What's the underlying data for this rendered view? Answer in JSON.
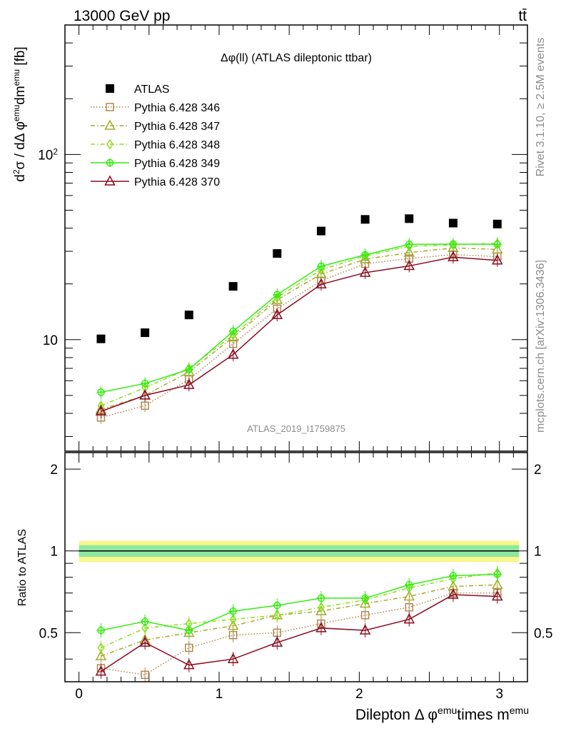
{
  "header": {
    "energy_label": "13000 GeV pp",
    "process_label": "tt̄"
  },
  "side_text": {
    "rivet": "Rivet 3.1.10, ≥ 2.5M events",
    "source": "mcplots.cern.ch [arXiv:1306.3436]"
  },
  "chart_data": [
    {
      "type": "scatter",
      "panel": "main",
      "title": "Δφ(ll) (ATLAS dileptonic ttbar)",
      "watermark": "ATLAS_2019_I1759875",
      "ylabel": "d²σ / dΔφ^emu dm^emu [fb]",
      "yscale": "log",
      "ylim": [
        2.5,
        500
      ],
      "xlim": [
        -0.1,
        3.2
      ],
      "ytick_labels": [
        "10",
        "10²"
      ],
      "x": [
        0.157,
        0.471,
        0.785,
        1.1,
        1.414,
        1.728,
        2.042,
        2.356,
        2.67,
        2.985
      ],
      "legend_position": "top-left",
      "series": [
        {
          "name": "ATLAS",
          "color": "#000000",
          "marker": "square-filled",
          "line": "none",
          "values": [
            10.1,
            10.9,
            13.6,
            19.4,
            29.2,
            38.6,
            44.6,
            45.0,
            42.6,
            42.1
          ]
        },
        {
          "name": "Pythia 6.428 346",
          "color": "#b08850",
          "marker": "square-open",
          "line": "dotted",
          "values": [
            3.8,
            4.4,
            6.1,
            9.5,
            14.7,
            20.8,
            25.7,
            27.4,
            28.8,
            28.1
          ]
        },
        {
          "name": "Pythia 6.428 347",
          "color": "#a8a830",
          "marker": "triangle-open",
          "line": "dashdot",
          "values": [
            4.2,
            5.0,
            6.7,
            10.3,
            16.4,
            22.6,
            27.2,
            29.5,
            31.3,
            30.7
          ]
        },
        {
          "name": "Pythia 6.428 348",
          "color": "#90dd20",
          "marker": "diamond-open",
          "line": "dashdot",
          "values": [
            4.4,
            5.5,
            7.0,
            10.6,
            16.9,
            23.8,
            28.3,
            31.9,
            32.5,
            33.1
          ]
        },
        {
          "name": "Pythia 6.428 349",
          "color": "#33ee11",
          "marker": "cross-circle",
          "line": "solid",
          "values": [
            5.2,
            5.8,
            6.9,
            11.1,
            17.5,
            24.9,
            28.7,
            32.7,
            32.8,
            32.7
          ]
        },
        {
          "name": "Pythia 6.428 370",
          "color": "#8b0a1e",
          "marker": "triangle-open",
          "line": "solid",
          "values": [
            4.1,
            5.0,
            5.7,
            8.3,
            13.6,
            19.9,
            23.0,
            25.0,
            27.9,
            26.8
          ]
        }
      ]
    },
    {
      "type": "scatter",
      "panel": "ratio",
      "xlabel": "Dilepton Δ φ^emu times m^emu",
      "ylabel": "Ratio to ATLAS",
      "ylim": [
        0.33,
        2.3
      ],
      "xlim": [
        -0.1,
        3.2
      ],
      "xtick_labels": [
        "0",
        "1",
        "2",
        "3"
      ],
      "ytick_labels": [
        "0.5",
        "1",
        "2"
      ],
      "band_inner": 0.05,
      "band_outer": 0.09,
      "x": [
        0.157,
        0.471,
        0.785,
        1.1,
        1.414,
        1.728,
        2.042,
        2.356,
        2.67,
        2.985
      ],
      "series": [
        {
          "name": "Pythia 6.428 346",
          "values": [
            0.37,
            0.35,
            0.44,
            0.49,
            0.5,
            0.54,
            0.58,
            0.62,
            0.7,
            0.7
          ]
        },
        {
          "name": "Pythia 6.428 347",
          "values": [
            0.41,
            0.47,
            0.5,
            0.53,
            0.58,
            0.6,
            0.64,
            0.68,
            0.74,
            0.75
          ]
        },
        {
          "name": "Pythia 6.428 348",
          "values": [
            0.44,
            0.52,
            0.54,
            0.56,
            0.58,
            0.62,
            0.66,
            0.73,
            0.79,
            0.83
          ]
        },
        {
          "name": "Pythia 6.428 349",
          "values": [
            0.51,
            0.55,
            0.51,
            0.6,
            0.63,
            0.67,
            0.67,
            0.75,
            0.81,
            0.82
          ]
        },
        {
          "name": "Pythia 6.428 370",
          "values": [
            0.36,
            0.46,
            0.38,
            0.4,
            0.46,
            0.52,
            0.51,
            0.56,
            0.69,
            0.68
          ]
        }
      ]
    }
  ]
}
